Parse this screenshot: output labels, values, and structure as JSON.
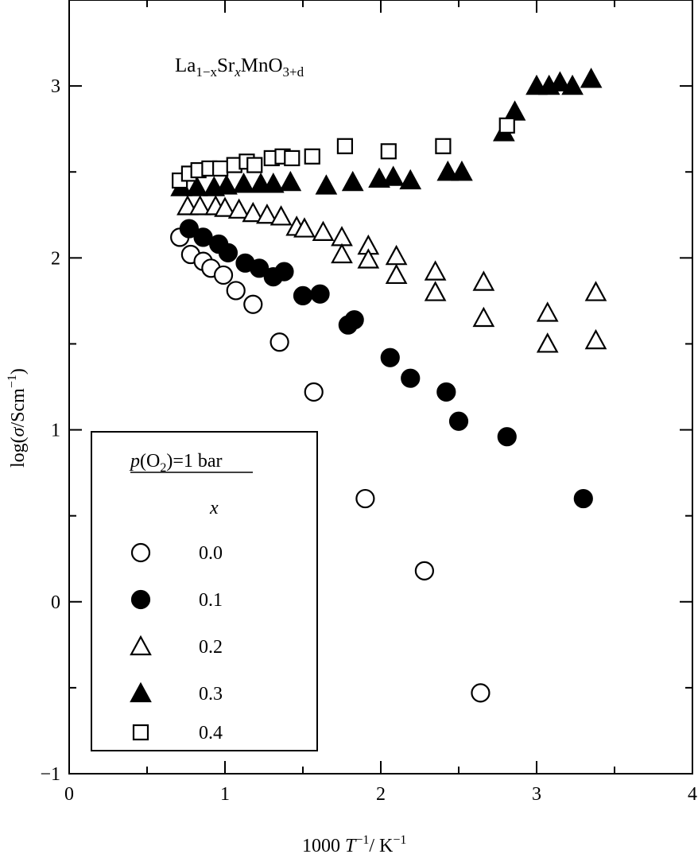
{
  "chart_data": {
    "type": "scatter",
    "title_parts": {
      "base": "La",
      "sub1": "1−x",
      "mid1": "Sr",
      "sub2": "x",
      "mid2": "MnO",
      "sub3": "3+d"
    },
    "xlabel_parts": {
      "pre": "1000  ",
      "T": "T",
      "sup1": "−1",
      "post": "/ K",
      "sup2": "−1"
    },
    "ylabel_parts": {
      "pre": "log(",
      "sigma": "σ",
      "mid": "/Scm",
      "sup": "−1",
      "post": ")"
    },
    "xlim": [
      0,
      4
    ],
    "ylim": [
      -1,
      3.5
    ],
    "xticks": [
      "0",
      "1",
      "2",
      "3",
      "4"
    ],
    "yticks": [
      "−1",
      "0",
      "1",
      "2",
      "3"
    ],
    "legend": {
      "placement": "bottom-left",
      "header": "p(O2)=1 bar",
      "header_parts": {
        "p": "p",
        "pre": "(O",
        "sub": "2",
        "post": ")=1 bar"
      },
      "column_label": "x",
      "entries": [
        "0.0",
        "0.1",
        "0.2",
        "0.3",
        "0.4"
      ]
    },
    "series": [
      {
        "name": "0.0",
        "marker": "open-circle",
        "points": [
          [
            0.71,
            2.12
          ],
          [
            0.78,
            2.02
          ],
          [
            0.86,
            1.98
          ],
          [
            0.91,
            1.94
          ],
          [
            0.99,
            1.9
          ],
          [
            1.07,
            1.81
          ],
          [
            1.18,
            1.73
          ],
          [
            1.35,
            1.51
          ],
          [
            1.57,
            1.22
          ],
          [
            1.9,
            0.6
          ],
          [
            2.28,
            0.18
          ],
          [
            2.64,
            -0.53
          ]
        ]
      },
      {
        "name": "0.1",
        "marker": "filled-circle",
        "points": [
          [
            0.77,
            2.17
          ],
          [
            0.86,
            2.12
          ],
          [
            0.96,
            2.08
          ],
          [
            1.02,
            2.03
          ],
          [
            1.13,
            1.97
          ],
          [
            1.22,
            1.94
          ],
          [
            1.31,
            1.89
          ],
          [
            1.38,
            1.92
          ],
          [
            1.5,
            1.78
          ],
          [
            1.61,
            1.79
          ],
          [
            1.79,
            1.61
          ],
          [
            1.83,
            1.64
          ],
          [
            2.06,
            1.42
          ],
          [
            2.19,
            1.3
          ],
          [
            2.42,
            1.22
          ],
          [
            2.5,
            1.05
          ],
          [
            2.81,
            0.96
          ],
          [
            3.3,
            0.6
          ]
        ]
      },
      {
        "name": "0.2",
        "marker": "open-triangle",
        "points": [
          [
            0.76,
            2.3
          ],
          [
            0.84,
            2.3
          ],
          [
            0.94,
            2.3
          ],
          [
            1.0,
            2.29
          ],
          [
            1.09,
            2.28
          ],
          [
            1.18,
            2.26
          ],
          [
            1.27,
            2.25
          ],
          [
            1.36,
            2.24
          ],
          [
            1.46,
            2.18
          ],
          [
            1.51,
            2.17
          ],
          [
            1.63,
            2.15
          ],
          [
            1.75,
            2.12
          ],
          [
            1.75,
            2.02
          ],
          [
            1.92,
            2.07
          ],
          [
            1.92,
            1.99
          ],
          [
            2.1,
            2.01
          ],
          [
            2.1,
            1.9
          ],
          [
            2.35,
            1.92
          ],
          [
            2.35,
            1.8
          ],
          [
            2.66,
            1.86
          ],
          [
            2.66,
            1.65
          ],
          [
            3.07,
            1.68
          ],
          [
            3.07,
            1.5
          ],
          [
            3.38,
            1.8
          ],
          [
            3.38,
            1.52
          ]
        ]
      },
      {
        "name": "0.3",
        "marker": "filled-triangle",
        "points": [
          [
            0.72,
            2.41
          ],
          [
            0.82,
            2.41
          ],
          [
            0.93,
            2.41
          ],
          [
            1.01,
            2.42
          ],
          [
            1.12,
            2.43
          ],
          [
            1.23,
            2.43
          ],
          [
            1.31,
            2.43
          ],
          [
            1.42,
            2.44
          ],
          [
            1.65,
            2.42
          ],
          [
            1.82,
            2.44
          ],
          [
            1.99,
            2.46
          ],
          [
            2.08,
            2.47
          ],
          [
            2.19,
            2.45
          ],
          [
            2.43,
            2.5
          ],
          [
            2.52,
            2.5
          ],
          [
            2.79,
            2.73
          ],
          [
            2.86,
            2.85
          ],
          [
            3.0,
            3.0
          ],
          [
            3.08,
            3.0
          ],
          [
            3.15,
            3.02
          ],
          [
            3.23,
            3.0
          ],
          [
            3.35,
            3.04
          ]
        ]
      },
      {
        "name": "0.4",
        "marker": "open-square",
        "points": [
          [
            0.71,
            2.45
          ],
          [
            0.77,
            2.49
          ],
          [
            0.83,
            2.51
          ],
          [
            0.9,
            2.52
          ],
          [
            0.97,
            2.52
          ],
          [
            1.06,
            2.54
          ],
          [
            1.14,
            2.56
          ],
          [
            1.19,
            2.54
          ],
          [
            1.3,
            2.58
          ],
          [
            1.37,
            2.59
          ],
          [
            1.43,
            2.58
          ],
          [
            1.56,
            2.59
          ],
          [
            1.77,
            2.65
          ],
          [
            2.05,
            2.62
          ],
          [
            2.4,
            2.65
          ],
          [
            2.81,
            2.77
          ]
        ]
      }
    ]
  }
}
